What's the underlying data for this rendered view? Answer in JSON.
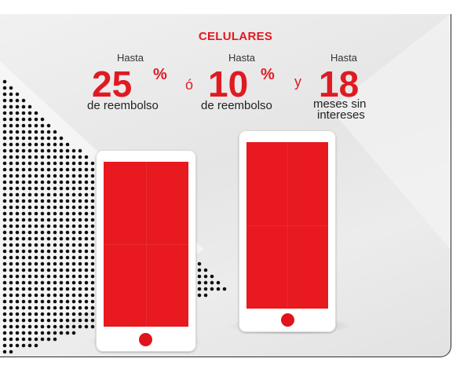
{
  "promo": {
    "category": "CELULARES",
    "offers": [
      {
        "prefix": "Hasta",
        "value": "25",
        "suffix": "%",
        "description": "de reembolso"
      },
      {
        "prefix": "Hasta",
        "value": "10",
        "suffix": "%",
        "description": "de reembolso"
      },
      {
        "prefix": "Hasta",
        "value": "18",
        "suffix": "",
        "description_line1": "meses sin",
        "description_line2": "intereses"
      }
    ],
    "conjunction_or": "ó",
    "conjunction_and": "y"
  },
  "colors": {
    "brand_red": "#e01a22",
    "screen_red": "#e8191f",
    "text_dark": "#222222",
    "background_gray": "#e8e8e8"
  },
  "icons": {
    "phone_left": "smartphone-icon",
    "phone_right": "smartphone-icon"
  }
}
